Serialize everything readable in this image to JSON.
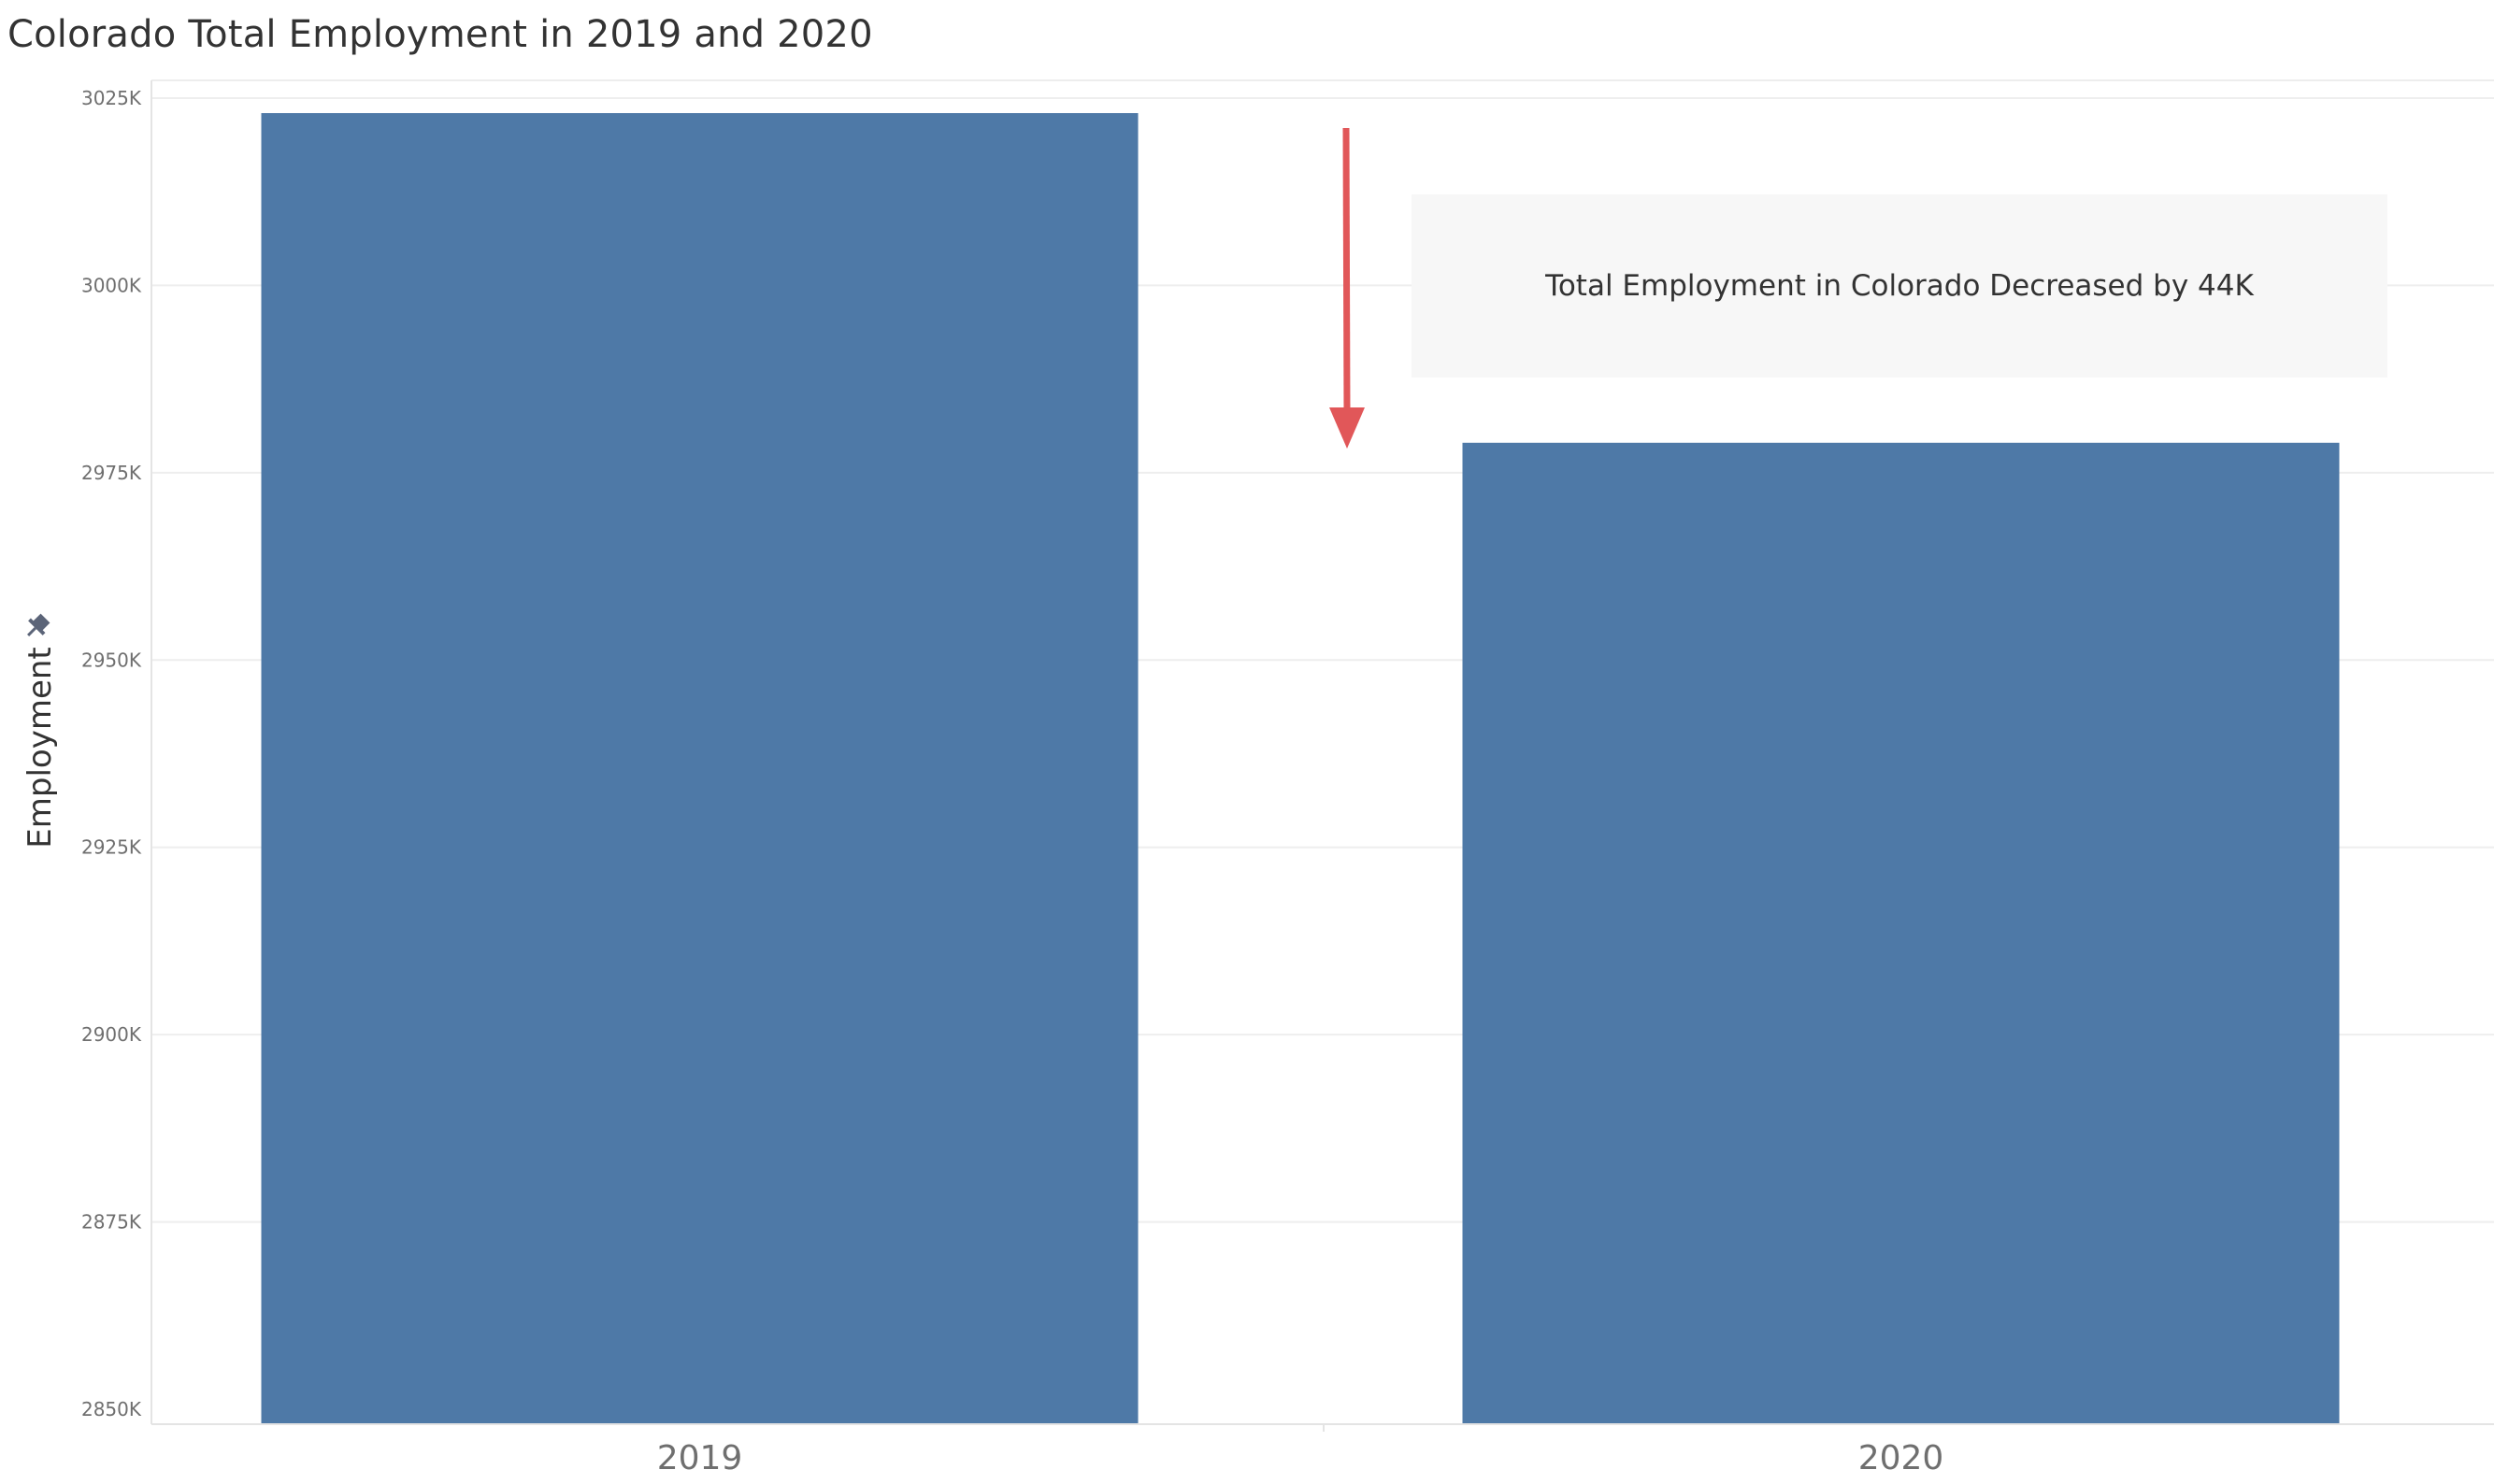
{
  "chart_data": {
    "type": "bar",
    "title": "Colorado Total Employment in 2019 and 2020",
    "xlabel": "",
    "ylabel": "Employment",
    "categories": [
      "2019",
      "2020"
    ],
    "values": [
      3023,
      2979
    ],
    "ylim": [
      2850,
      3025
    ],
    "yticks": [
      2850,
      2875,
      2900,
      2925,
      2950,
      2975,
      3000,
      3025
    ],
    "ytick_labels": [
      "2850K",
      "2875K",
      "2900K",
      "2925K",
      "2950K",
      "2975K",
      "3000K",
      "3025K"
    ],
    "grid": true,
    "bar_color": "#4e79a7",
    "annotation": {
      "text": "Total Employment in Colorado Decreased by 44K",
      "arrow_color": "#e15759",
      "box_color": "#f7f7f7"
    }
  }
}
